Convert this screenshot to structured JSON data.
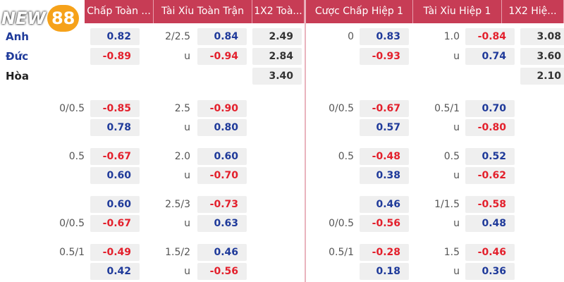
{
  "logo": {
    "part1": "NEW",
    "part2": "88"
  },
  "headers": [
    "Chấp Toàn ...",
    "Tài Xỉu Toàn Trận",
    "1X2 Toà...",
    "Cược Chấp Hiệp 1",
    "Tài Xỉu Hiệp 1",
    "1X2 Hiệ..."
  ],
  "rows": [
    {
      "team": "Anh",
      "ho": "0.82",
      "oul": "2/2.5",
      "ouo": "0.84",
      "x": "2.49",
      "rhl": "0",
      "rho": "0.83",
      "roul": "1.0",
      "rouo": "-0.84",
      "rx": "3.08"
    },
    {
      "team": "Đức",
      "ho": "-0.89",
      "oul": "u",
      "ouo": "-0.94",
      "x": "2.84",
      "rho": "-0.93",
      "roul": "u",
      "rouo": "0.74",
      "rx": "3.60"
    },
    {
      "team": "Hòa",
      "x": "3.40",
      "rx": "2.10"
    },
    {
      "hl": "0/0.5",
      "ho": "-0.85",
      "oul": "2.5",
      "ouo": "-0.90",
      "rhl": "0/0.5",
      "rho": "-0.67",
      "roul": "0.5/1",
      "rouo": "0.70"
    },
    {
      "ho": "0.78",
      "oul": "u",
      "ouo": "0.80",
      "rho": "0.57",
      "roul": "u",
      "rouo": "-0.80"
    },
    {
      "hl": "0.5",
      "ho": "-0.67",
      "oul": "2.0",
      "ouo": "0.60",
      "rhl": "0.5",
      "rho": "-0.48",
      "roul": "0.5",
      "rouo": "0.52"
    },
    {
      "ho": "0.60",
      "oul": "u",
      "ouo": "-0.70",
      "rho": "0.38",
      "roul": "u",
      "rouo": "-0.62"
    },
    {
      "ho": "0.60",
      "oul": "2.5/3",
      "ouo": "-0.73",
      "rho": "0.46",
      "roul": "1/1.5",
      "rouo": "-0.58"
    },
    {
      "hl": "0/0.5",
      "ho": "-0.67",
      "oul": "u",
      "ouo": "0.63",
      "rhl": "0/0.5",
      "rho": "-0.56",
      "roul": "u",
      "rouo": "0.48"
    },
    {
      "hl": "0.5/1",
      "ho": "-0.49",
      "oul": "1.5/2",
      "ouo": "0.46",
      "rhl": "0.5/1",
      "rho": "-0.28",
      "roul": "1.5",
      "rouo": "-0.46"
    },
    {
      "ho": "0.42",
      "oul": "u",
      "ouo": "-0.56",
      "rho": "0.18",
      "roul": "u",
      "rouo": "0.36"
    }
  ]
}
